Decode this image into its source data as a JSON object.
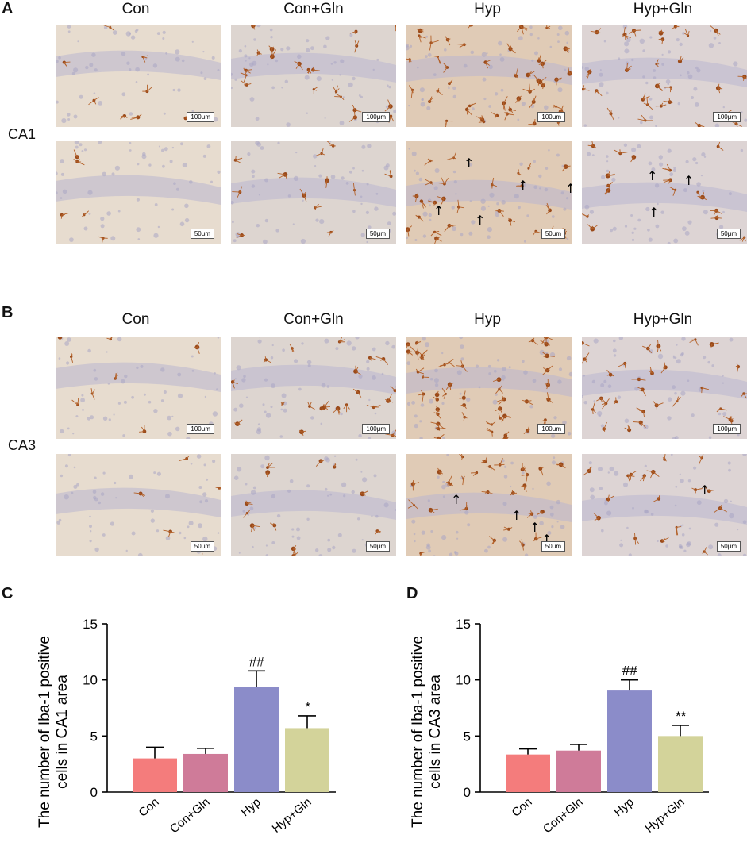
{
  "figure": {
    "panel_letters": {
      "A": "A",
      "B": "B",
      "C": "C",
      "D": "D"
    },
    "columns": [
      "Con",
      "Con+Gln",
      "Hyp",
      "Hyp+Gln"
    ],
    "rows": {
      "ca1": "CA1",
      "ca3": "CA3"
    },
    "scalebars": {
      "low": "100μm",
      "high": "50μm"
    },
    "arrow_glyph": "↑"
  },
  "chart_data": [
    {
      "type": "bar",
      "panel": "C",
      "categories": [
        "Con",
        "Con+Gln",
        "Hyp",
        "Hyp+Gln"
      ],
      "values": [
        3.0,
        3.4,
        9.4,
        5.7
      ],
      "errors": [
        1.0,
        0.5,
        1.4,
        1.1
      ],
      "significance": [
        "",
        "",
        "##",
        "*"
      ],
      "colors": [
        "#f47c7c",
        "#cf7b99",
        "#8b8cc9",
        "#d3d39a"
      ],
      "ylabel_line1": "The number of Iba-1 positive",
      "ylabel_line2": "cells in CA1 area",
      "ylim": [
        0,
        15
      ],
      "yticks": [
        0,
        5,
        10,
        15
      ]
    },
    {
      "type": "bar",
      "panel": "D",
      "categories": [
        "Con",
        "Con+Gln",
        "Hyp",
        "Hyp+Gln"
      ],
      "values": [
        3.35,
        3.7,
        9.05,
        5.0
      ],
      "errors": [
        0.5,
        0.55,
        0.95,
        0.95
      ],
      "significance": [
        "",
        "",
        "##",
        "**"
      ],
      "colors": [
        "#f47c7c",
        "#cf7b99",
        "#8b8cc9",
        "#d3d39a"
      ],
      "ylabel_line1": "The number of Iba-1 positive",
      "ylabel_line2": "cells in CA3 area",
      "ylim": [
        0,
        15
      ],
      "yticks": [
        0,
        5,
        10,
        15
      ]
    }
  ]
}
